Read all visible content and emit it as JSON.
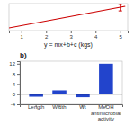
{
  "chart_data": [
    {
      "type": "line",
      "x_label": "y = mx+b+c (kgs)",
      "series": [
        {
          "type": "line",
          "color": "#cc0000",
          "x": [
            0.5,
            5.2
          ],
          "values": [
            0.2,
            1.0
          ]
        },
        {
          "type": "errorbar",
          "color": "#cc0000",
          "x": [
            5.0
          ],
          "values": [
            0.95
          ],
          "error": [
            0.12
          ]
        }
      ],
      "xlim": [
        0.5,
        5.3
      ],
      "ylim": [
        0.1,
        1.1
      ],
      "xticks": [
        1,
        2,
        3,
        4,
        5
      ],
      "tick_labels": "x"
    },
    {
      "type": "bar",
      "title": "b)",
      "categories": [
        "Length",
        "Width",
        "Wt",
        "MeOH\nantimicrobial\nactivity"
      ],
      "values": [
        -1.0,
        1.5,
        -1.2,
        12.0
      ],
      "color": "#2244cc",
      "ylim": [
        -4,
        13
      ],
      "yticks": [
        -4,
        0,
        4,
        8,
        12
      ]
    }
  ]
}
